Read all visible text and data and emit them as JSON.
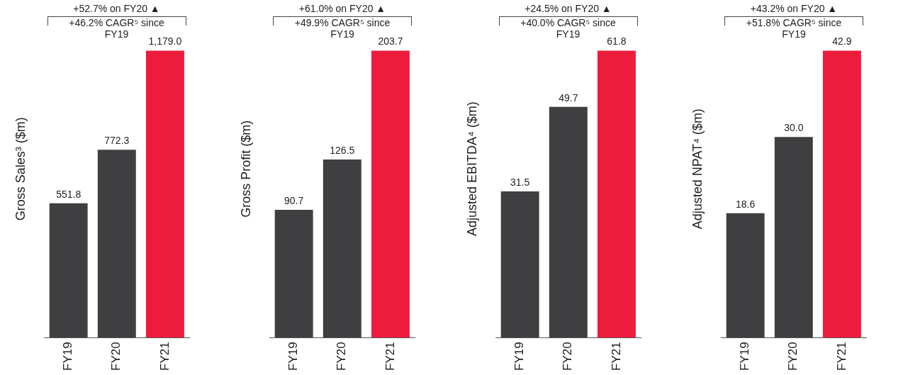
{
  "chart_data": [
    {
      "type": "bar",
      "ylabel": "Gross Sales³ ($m)",
      "categories": [
        "FY19",
        "FY20",
        "FY21"
      ],
      "values": [
        551.8,
        772.3,
        1179.0
      ],
      "colors": [
        "#3f3f41",
        "#3f3f41",
        "#ee1c3c"
      ],
      "value_labels": [
        "551.8",
        "772.3",
        "1,179.0"
      ],
      "annotations": [
        "+52.7% on FY20 ▲",
        "+46.2% CAGR⁵ since FY19"
      ],
      "tick_labels": "x",
      "legend": false,
      "grid": false
    },
    {
      "type": "bar",
      "ylabel": "Gross Profit ($m)",
      "categories": [
        "FY19",
        "FY20",
        "FY21"
      ],
      "values": [
        90.7,
        126.5,
        203.7
      ],
      "colors": [
        "#3f3f41",
        "#3f3f41",
        "#ee1c3c"
      ],
      "value_labels": [
        "90.7",
        "126.5",
        "203.7"
      ],
      "annotations": [
        "+61.0% on FY20 ▲",
        "+49.9% CAGR⁵ since FY19"
      ],
      "tick_labels": "x",
      "legend": false,
      "grid": false
    },
    {
      "type": "bar",
      "ylabel": "Adjusted EBITDA⁴ ($m)",
      "categories": [
        "FY19",
        "FY20",
        "FY21"
      ],
      "values": [
        31.5,
        49.7,
        61.8
      ],
      "colors": [
        "#3f3f41",
        "#3f3f41",
        "#ee1c3c"
      ],
      "value_labels": [
        "31.5",
        "49.7",
        "61.8"
      ],
      "annotations": [
        "+24.5% on FY20 ▲",
        "+40.0% CAGR⁵ since FY19"
      ],
      "tick_labels": "x",
      "legend": false,
      "grid": false
    },
    {
      "type": "bar",
      "ylabel": "Adjusted NPAT⁴ ($m)",
      "categories": [
        "FY19",
        "FY20",
        "FY21"
      ],
      "values": [
        18.6,
        30.0,
        42.9
      ],
      "colors": [
        "#3f3f41",
        "#3f3f41",
        "#ee1c3c"
      ],
      "value_labels": [
        "18.6",
        "30.0",
        "42.9"
      ],
      "annotations": [
        "+43.2% on FY20 ▲",
        "+51.8% CAGR⁵ since FY19"
      ],
      "tick_labels": "x",
      "legend": false,
      "grid": false
    }
  ]
}
